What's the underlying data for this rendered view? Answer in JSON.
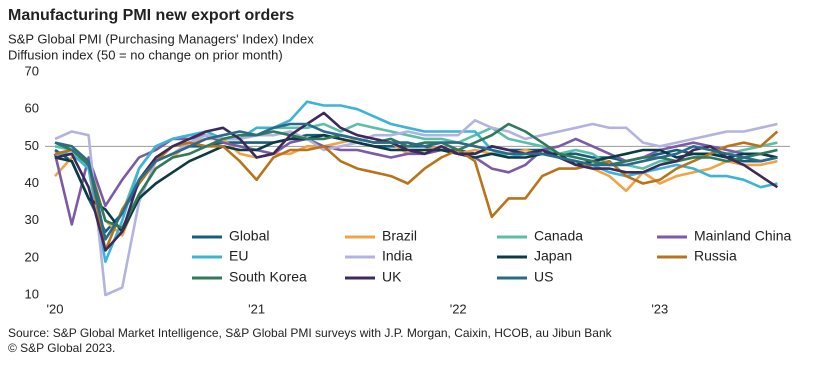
{
  "chart_data": {
    "type": "line",
    "title": "Manufacturing PMI new export orders",
    "subtitle": [
      "S&P Global PMI (Purchasing Managers' Index) Index",
      "Diffusion index (50 = no change on prior month)"
    ],
    "source": [
      "Source: S&P Global Market Intelligence, S&P Global PMI surveys with J.P. Morgan, Caixin, HCOB, au Jibun Bank",
      "© S&P Global 2023."
    ],
    "categories": [
      "'20",
      null,
      null,
      null,
      null,
      null,
      null,
      null,
      null,
      null,
      null,
      null,
      "'21",
      null,
      null,
      null,
      null,
      null,
      null,
      null,
      null,
      null,
      null,
      null,
      "'22",
      null,
      null,
      null,
      null,
      null,
      null,
      null,
      null,
      null,
      null,
      null,
      "'23",
      null,
      null,
      null,
      null,
      null,
      null,
      null
    ],
    "ylim": [
      10,
      70
    ],
    "yticks": [
      10,
      20,
      30,
      40,
      50,
      60,
      70
    ],
    "reference_line": 50,
    "series": [
      {
        "name": "Global",
        "color": "#165f7c",
        "values": [
          49,
          46,
          36,
          27,
          32,
          40,
          46,
          48,
          50,
          50,
          51,
          51,
          51,
          51,
          52,
          53,
          53,
          52,
          51,
          50,
          50,
          50,
          50,
          49,
          49,
          48,
          50,
          49,
          49,
          49,
          48,
          48,
          47,
          47,
          46,
          47,
          48,
          49,
          48,
          48,
          47,
          46,
          46,
          47
        ]
      },
      {
        "name": "Brazil",
        "color": "#f0a44a",
        "values": [
          42,
          47,
          46,
          30,
          26,
          37,
          44,
          47,
          51,
          52,
          52,
          48,
          47,
          48,
          48,
          50,
          50,
          51,
          52,
          51,
          51,
          48,
          49,
          50,
          48,
          49,
          48,
          48,
          49,
          48,
          47,
          46,
          44,
          42,
          38,
          43,
          40,
          42,
          43,
          44,
          46,
          45,
          45,
          46
        ]
      },
      {
        "name": "Canada",
        "color": "#5bbfa8",
        "values": [
          50,
          49,
          46,
          25,
          32,
          44,
          50,
          52,
          53,
          53,
          52,
          52,
          53,
          55,
          55,
          55,
          56,
          54,
          56,
          55,
          54,
          53,
          52,
          52,
          51,
          53,
          55,
          52,
          51,
          50,
          48,
          49,
          48,
          45,
          45,
          44,
          46,
          46,
          47,
          48,
          48,
          49,
          50,
          51
        ]
      },
      {
        "name": "Mainland China",
        "color": "#7b5aa6",
        "values": [
          48,
          29,
          47,
          34,
          41,
          47,
          49,
          52,
          52,
          53,
          51,
          50,
          49,
          48,
          51,
          52,
          50,
          49,
          49,
          48,
          47,
          48,
          48,
          49,
          48,
          47,
          44,
          43,
          45,
          49,
          50,
          52,
          50,
          48,
          46,
          47,
          49,
          50,
          51,
          50,
          49,
          48,
          48,
          47
        ]
      },
      {
        "name": "EU",
        "color": "#3cb4d6",
        "values": [
          48,
          48,
          44,
          19,
          30,
          44,
          50,
          52,
          53,
          54,
          52,
          52,
          55,
          55,
          57,
          62,
          61,
          61,
          60,
          58,
          56,
          55,
          54,
          54,
          54,
          54,
          49,
          47,
          48,
          48,
          47,
          46,
          45,
          43,
          42,
          43,
          44,
          45,
          44,
          42,
          42,
          41,
          39,
          40
        ]
      },
      {
        "name": "India",
        "color": "#b3b3e0",
        "values": [
          52,
          54,
          53,
          10,
          12,
          35,
          46,
          48,
          51,
          53,
          52,
          52,
          53,
          53,
          54,
          52,
          49,
          50,
          51,
          53,
          53,
          54,
          53,
          53,
          53,
          57,
          55,
          54,
          52,
          53,
          54,
          55,
          56,
          55,
          55,
          51,
          50,
          51,
          52,
          53,
          54,
          54,
          55,
          56
        ]
      },
      {
        "name": "Japan",
        "color": "#0c3b45",
        "values": [
          47,
          46,
          36,
          33,
          27,
          36,
          40,
          43,
          46,
          48,
          50,
          49,
          49,
          51,
          52,
          52,
          53,
          52,
          51,
          50,
          49,
          49,
          49,
          49,
          48,
          47,
          48,
          47,
          47,
          48,
          48,
          45,
          46,
          47,
          48,
          49,
          49,
          47,
          48,
          48,
          47,
          48,
          48,
          47
        ]
      },
      {
        "name": "Russia",
        "color": "#b8741a",
        "values": [
          48,
          49,
          46,
          22,
          33,
          40,
          46,
          50,
          51,
          50,
          50,
          46,
          41,
          47,
          49,
          49,
          50,
          46,
          44,
          43,
          42,
          40,
          44,
          47,
          49,
          46,
          31,
          36,
          36,
          42,
          44,
          44,
          45,
          46,
          42,
          40,
          41,
          44,
          46,
          48,
          50,
          51,
          50,
          54
        ]
      },
      {
        "name": "South Korea",
        "color": "#2e7a5a",
        "values": [
          51,
          49,
          45,
          30,
          28,
          37,
          44,
          47,
          48,
          50,
          52,
          53,
          53,
          54,
          53,
          52,
          52,
          53,
          52,
          51,
          52,
          50,
          51,
          51,
          49,
          51,
          53,
          56,
          54,
          51,
          48,
          47,
          46,
          45,
          46,
          47,
          47,
          46,
          47,
          47,
          46,
          47,
          48,
          49
        ]
      },
      {
        "name": "UK",
        "color": "#3d2a5a",
        "values": [
          47,
          48,
          39,
          22,
          27,
          41,
          47,
          50,
          52,
          54,
          55,
          52,
          47,
          48,
          53,
          56,
          59,
          55,
          53,
          52,
          51,
          49,
          48,
          50,
          48,
          48,
          50,
          49,
          48,
          49,
          47,
          45,
          44,
          44,
          43,
          43,
          45,
          46,
          49,
          50,
          47,
          45,
          42,
          39
        ]
      },
      {
        "name": "US",
        "color": "#2a6b8a",
        "values": [
          51,
          50,
          46,
          25,
          32,
          41,
          46,
          48,
          50,
          52,
          53,
          54,
          53,
          55,
          56,
          56,
          54,
          53,
          52,
          51,
          51,
          51,
          50,
          51,
          51,
          50,
          49,
          48,
          48,
          48,
          47,
          46,
          45,
          45,
          45,
          46,
          47,
          48,
          50,
          49,
          48,
          47,
          46,
          47
        ]
      }
    ]
  }
}
